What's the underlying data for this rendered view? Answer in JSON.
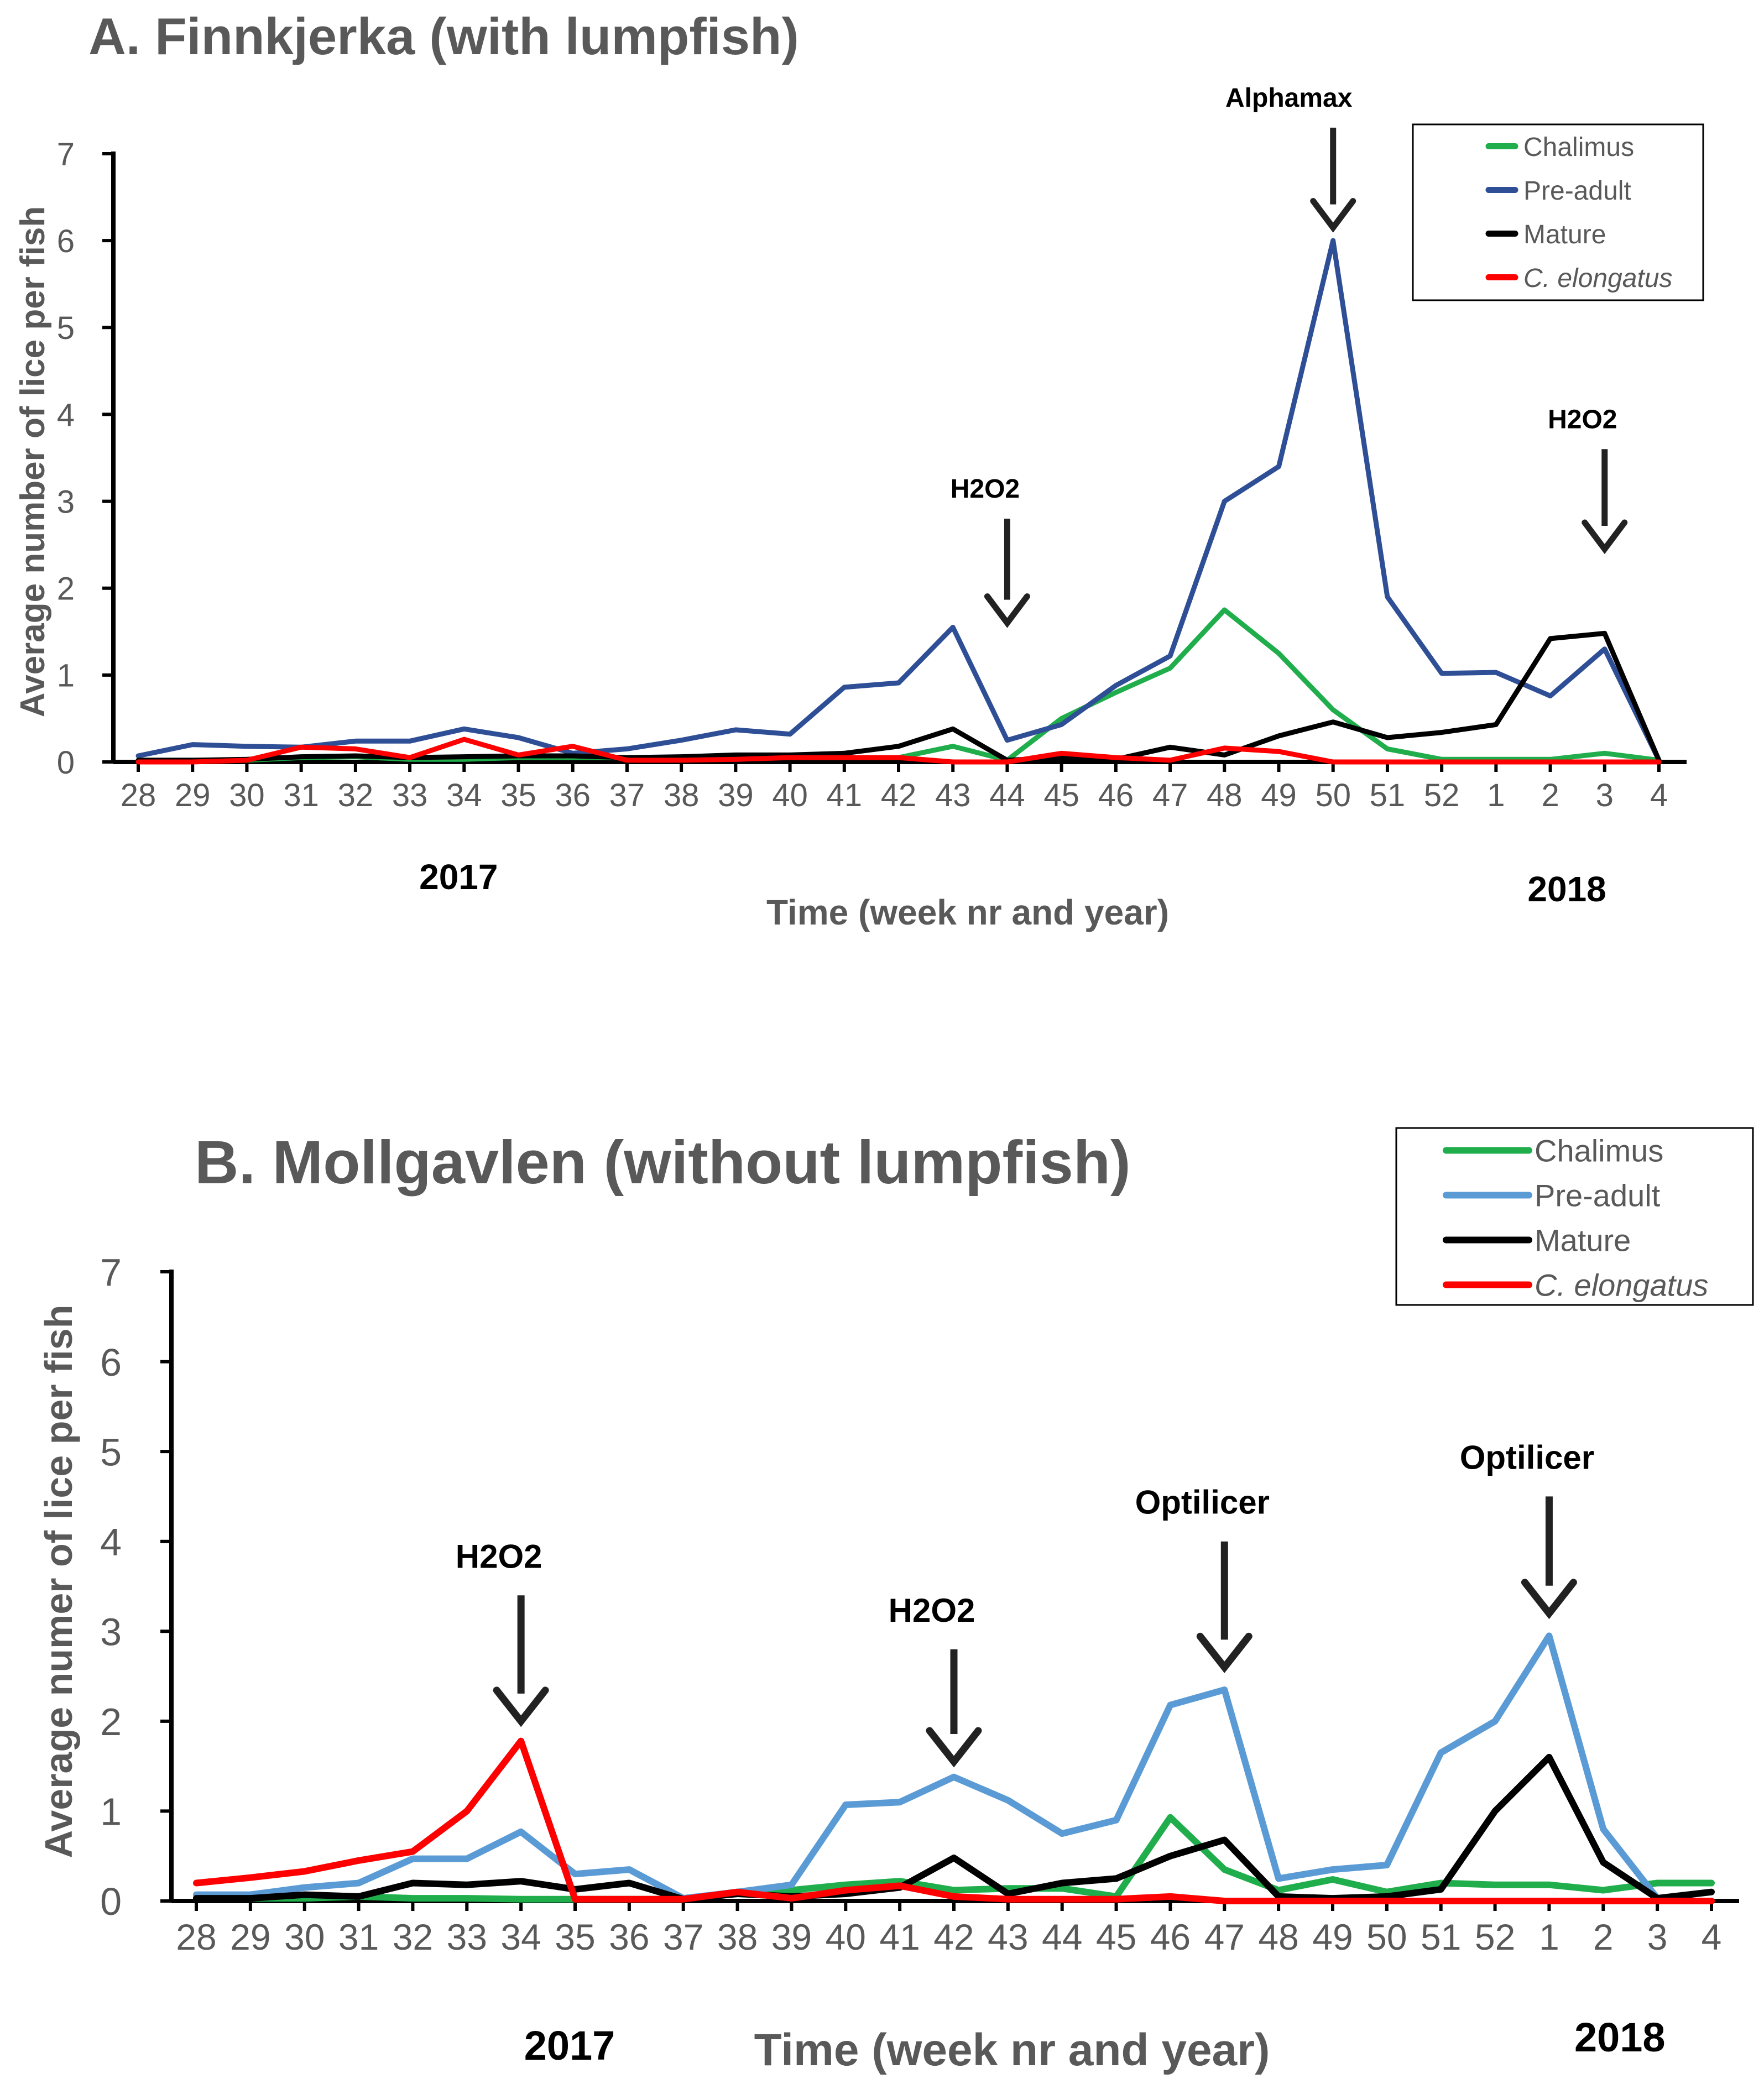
{
  "chart_data": [
    {
      "type": "line",
      "title": "A. Finnkjerka (with lumpfish)",
      "xlabel": "Time (week nr and year)",
      "ylabel": "Average number of lice per fish",
      "ylim": [
        0,
        7
      ],
      "yticks": [
        "0",
        "1",
        "2",
        "3",
        "4",
        "5",
        "6",
        "7"
      ],
      "categories": [
        "28",
        "29",
        "30",
        "31",
        "32",
        "33",
        "34",
        "35",
        "36",
        "37",
        "38",
        "39",
        "40",
        "41",
        "42",
        "43",
        "44",
        "45",
        "46",
        "47",
        "48",
        "49",
        "50",
        "51",
        "52",
        "1",
        "2",
        "3",
        "4"
      ],
      "year_labels": [
        {
          "text": "2017",
          "category": "34"
        },
        {
          "text": "2018",
          "category": "2"
        }
      ],
      "series": [
        {
          "name": "Chalimus",
          "color": "#1fae4b",
          "italic": false,
          "values": [
            0.02,
            0.02,
            0.02,
            0.05,
            0.06,
            0.03,
            0.03,
            0.05,
            0.05,
            0.05,
            0.05,
            0.05,
            0.05,
            0.05,
            0.05,
            0.18,
            0.02,
            0.5,
            0.8,
            1.08,
            1.75,
            1.25,
            0.6,
            0.15,
            0.03,
            0.03,
            0.03,
            0.1,
            0.02
          ]
        },
        {
          "name": "Pre-adult",
          "color": "#2e4e95",
          "italic": false,
          "values": [
            0.07,
            0.2,
            0.18,
            0.17,
            0.24,
            0.24,
            0.38,
            0.28,
            0.1,
            0.15,
            0.25,
            0.37,
            0.32,
            0.86,
            0.91,
            1.55,
            0.25,
            0.43,
            0.88,
            1.22,
            3.0,
            3.4,
            6.0,
            1.9,
            1.02,
            1.03,
            0.76,
            1.3,
            0.02
          ]
        },
        {
          "name": "Mature",
          "color": "#000000",
          "italic": false,
          "values": [
            0.02,
            0.02,
            0.03,
            0.06,
            0.07,
            0.05,
            0.06,
            0.07,
            0.07,
            0.05,
            0.06,
            0.08,
            0.08,
            0.1,
            0.18,
            0.38,
            0.02,
            0.05,
            0.03,
            0.17,
            0.08,
            0.3,
            0.46,
            0.28,
            0.34,
            0.43,
            1.42,
            1.48,
            0.02
          ]
        },
        {
          "name": "C. elongatus",
          "color": "#ff0000",
          "italic": true,
          "values": [
            0.0,
            0.0,
            0.02,
            0.17,
            0.15,
            0.05,
            0.26,
            0.08,
            0.18,
            0.02,
            0.02,
            0.03,
            0.05,
            0.05,
            0.05,
            0.0,
            0.0,
            0.1,
            0.05,
            0.02,
            0.16,
            0.12,
            0.0,
            0.0,
            0.0,
            0.0,
            0.0,
            0.0,
            0.0
          ]
        }
      ],
      "annotations": [
        {
          "text": "H2O2",
          "category": "44",
          "arrow_top": 2.8,
          "arrow_bottom": 1.6
        },
        {
          "text": "Alphamax",
          "category": "50",
          "arrow_top": 7.3,
          "arrow_bottom": 6.15
        },
        {
          "text": "H2O2",
          "category": "3",
          "arrow_top": 3.6,
          "arrow_bottom": 2.45
        }
      ],
      "legend_position": "top-right"
    },
    {
      "type": "line",
      "title": "B. Mollgavlen (without lumpfish)",
      "xlabel": "Time (week nr and year)",
      "ylabel": "Average numer of lice per fish",
      "ylim": [
        0,
        7
      ],
      "yticks": [
        "0",
        "1",
        "2",
        "3",
        "4",
        "5",
        "6",
        "7"
      ],
      "categories": [
        "28",
        "29",
        "30",
        "31",
        "32",
        "33",
        "34",
        "35",
        "36",
        "37",
        "38",
        "39",
        "40",
        "41",
        "42",
        "43",
        "44",
        "45",
        "46",
        "47",
        "48",
        "49",
        "50",
        "51",
        "52",
        "1",
        "2",
        "3",
        "4"
      ],
      "year_labels": [
        {
          "text": "2017",
          "category": "35"
        },
        {
          "text": "2018",
          "category": "2"
        }
      ],
      "series": [
        {
          "name": "Chalimus",
          "color": "#1fae4b",
          "italic": false,
          "values": [
            0.03,
            0.03,
            0.03,
            0.05,
            0.03,
            0.03,
            0.02,
            0.02,
            0.02,
            0.02,
            0.1,
            0.12,
            0.18,
            0.22,
            0.12,
            0.14,
            0.14,
            0.05,
            0.93,
            0.35,
            0.12,
            0.24,
            0.1,
            0.2,
            0.18,
            0.18,
            0.12,
            0.2,
            0.2
          ]
        },
        {
          "name": "Pre-adult",
          "color": "#5b9bd5",
          "italic": false,
          "values": [
            0.07,
            0.07,
            0.15,
            0.2,
            0.47,
            0.47,
            0.77,
            0.3,
            0.35,
            0.03,
            0.1,
            0.18,
            1.07,
            1.1,
            1.38,
            1.12,
            0.75,
            0.9,
            2.18,
            2.35,
            0.25,
            0.35,
            0.4,
            1.65,
            2.0,
            2.95,
            0.8,
            0.03,
            0.1
          ]
        },
        {
          "name": "Mature",
          "color": "#000000",
          "italic": false,
          "values": [
            0.03,
            0.03,
            0.07,
            0.05,
            0.2,
            0.18,
            0.22,
            0.13,
            0.2,
            0.02,
            0.08,
            0.05,
            0.08,
            0.15,
            0.48,
            0.08,
            0.2,
            0.25,
            0.5,
            0.68,
            0.05,
            0.03,
            0.05,
            0.13,
            1.0,
            1.6,
            0.43,
            0.03,
            0.1
          ]
        },
        {
          "name": "C. elongatus",
          "color": "#ff0000",
          "italic": true,
          "values": [
            0.2,
            0.26,
            0.33,
            0.45,
            0.55,
            1.0,
            1.78,
            0.02,
            0.02,
            0.02,
            0.1,
            0.03,
            0.12,
            0.17,
            0.05,
            0.02,
            0.02,
            0.02,
            0.05,
            0.0,
            0.0,
            0.0,
            0.0,
            0.0,
            0.0,
            0.0,
            0.0,
            0.0,
            0.0
          ]
        }
      ],
      "annotations": [
        {
          "text": "H2O2",
          "category": "34",
          "arrow_top": 3.4,
          "arrow_bottom": 2.0
        },
        {
          "text": "H2O2",
          "category": "42",
          "arrow_top": 2.8,
          "arrow_bottom": 1.55
        },
        {
          "text": "Optilicer",
          "category": "47",
          "arrow_top": 4.0,
          "arrow_bottom": 2.6
        },
        {
          "text": "Optilicer",
          "category": "1",
          "arrow_top": 4.5,
          "arrow_bottom": 3.2
        }
      ],
      "legend_position": "top-right"
    }
  ]
}
